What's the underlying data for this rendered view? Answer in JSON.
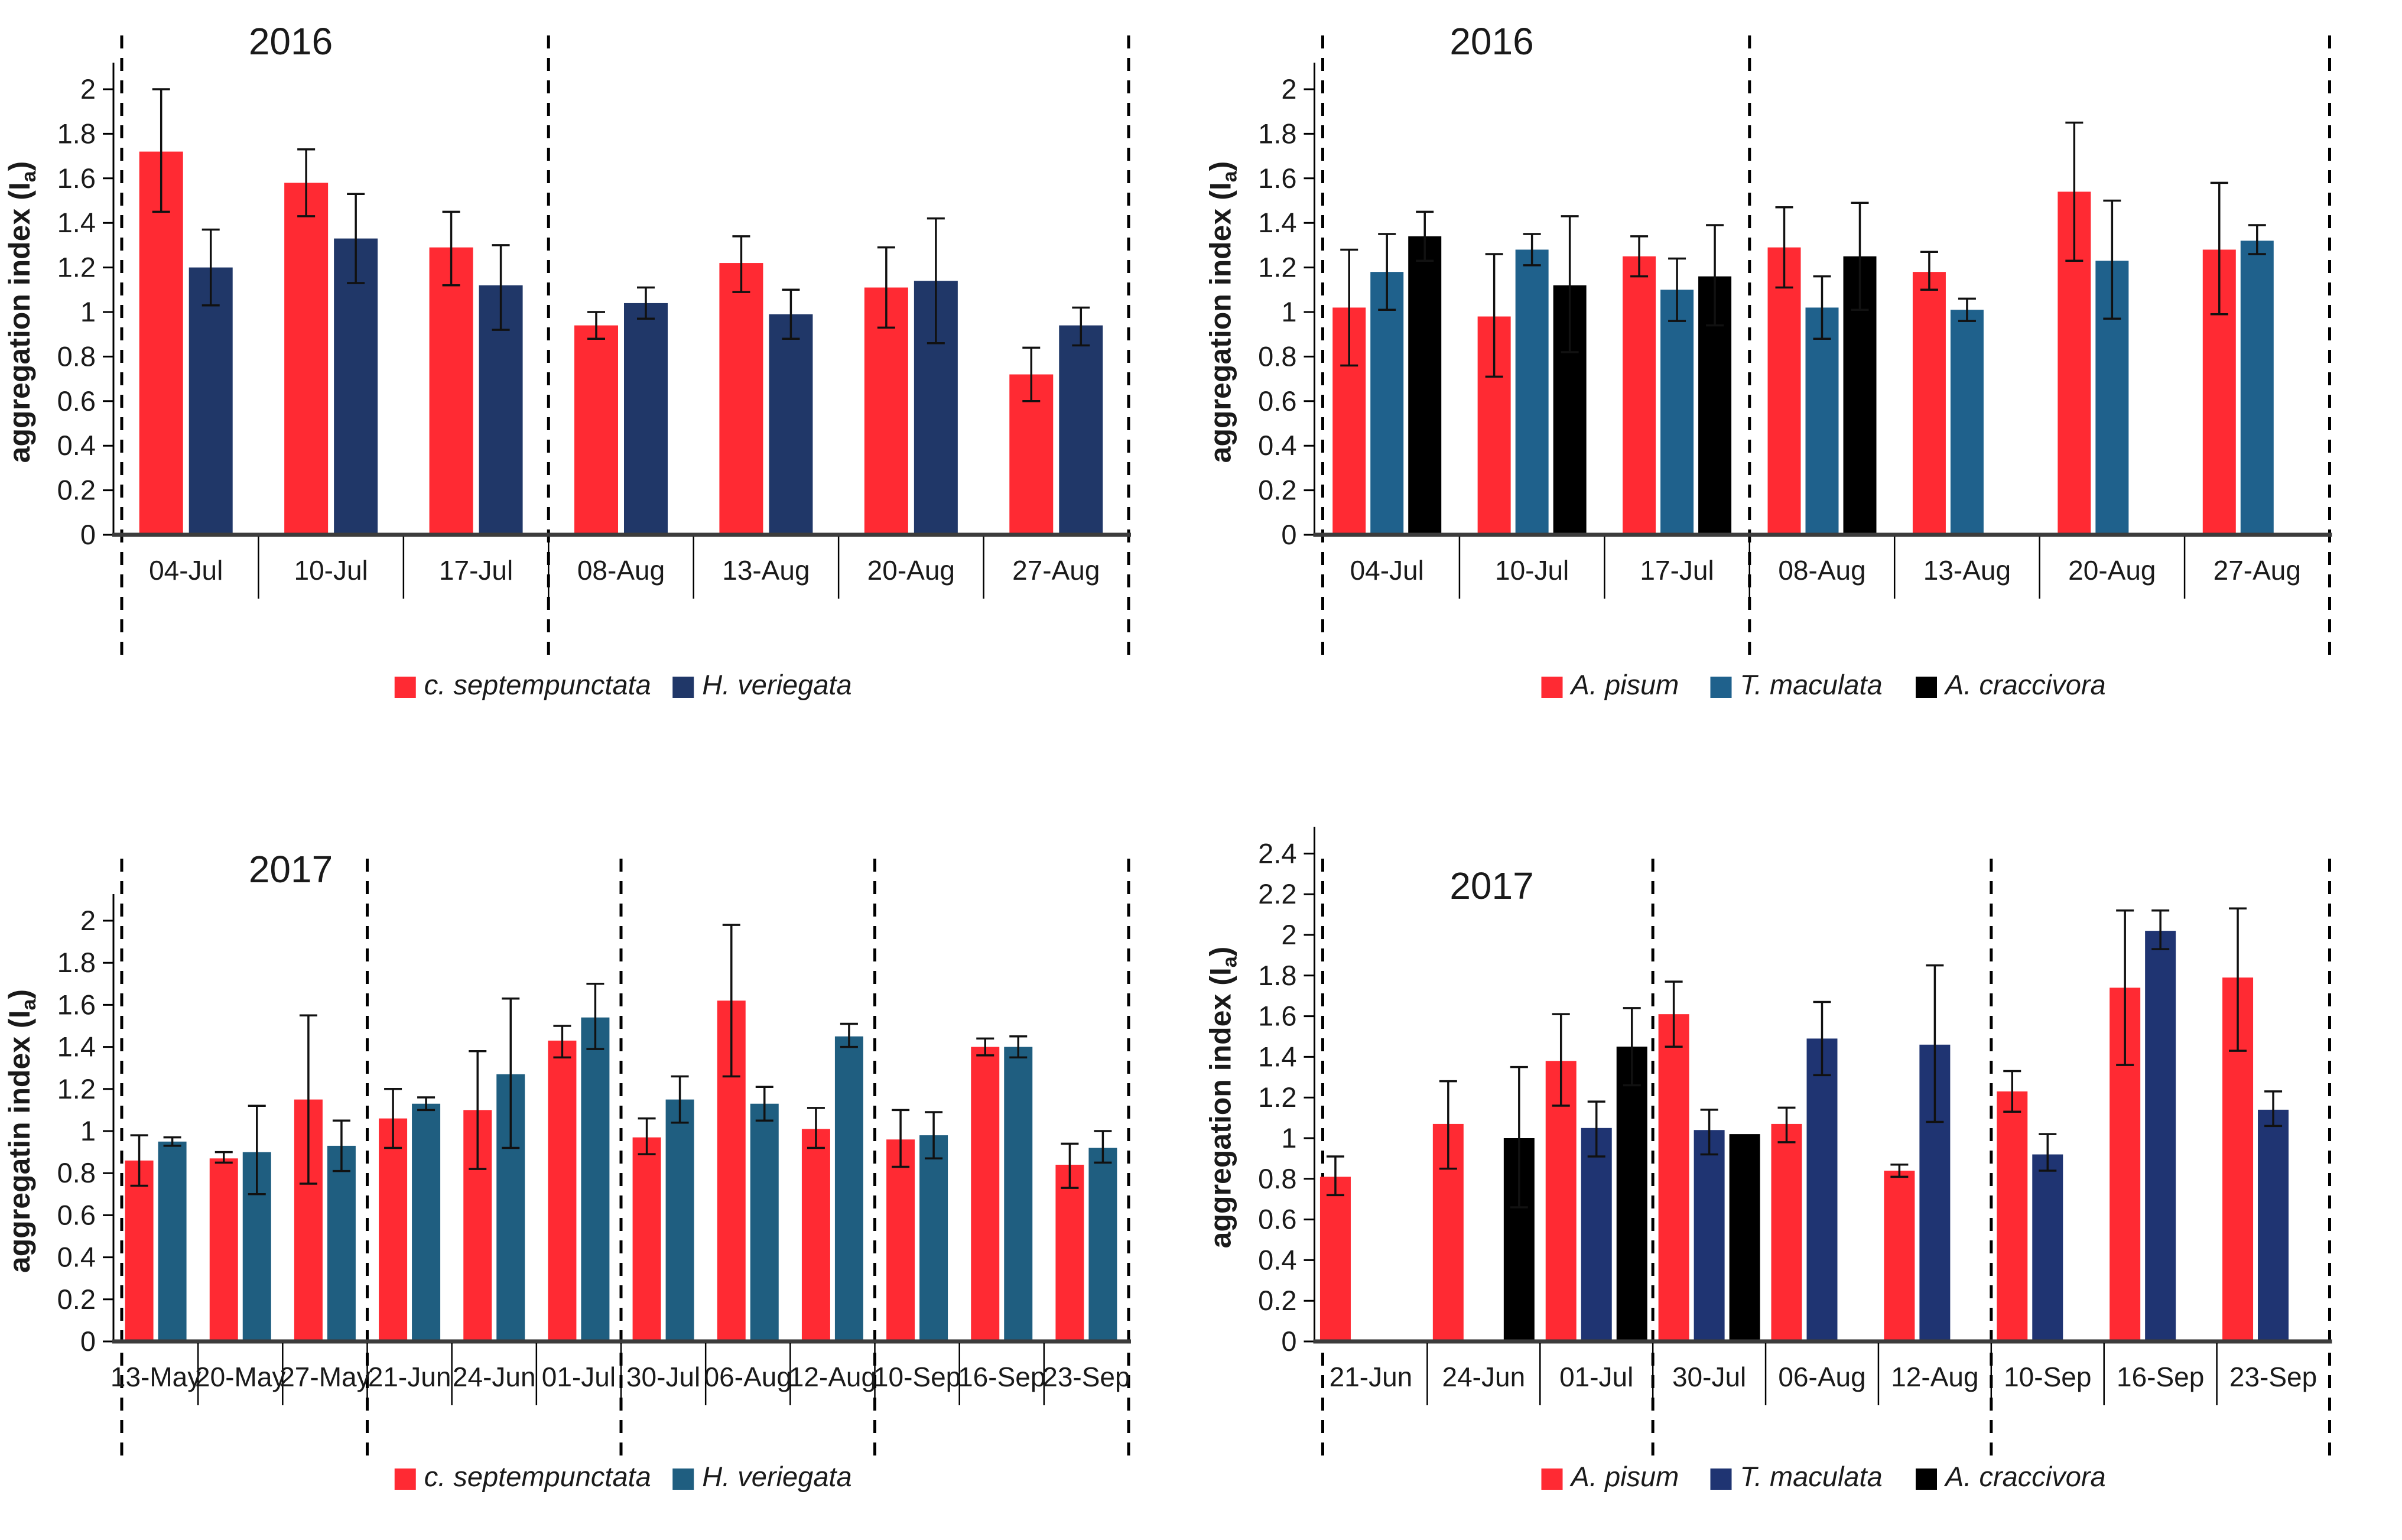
{
  "chart_data": [
    {
      "type": "bar",
      "title": "2016",
      "ylabel": {
        "text": "aggregation index (I",
        "sub": "a",
        "suffix": ")"
      },
      "ylim": [
        0,
        2
      ],
      "ytick_step": 0.2,
      "yticks": [
        "0",
        "0.2",
        "0.4",
        "0.6",
        "0.8",
        "1",
        "1.2",
        "1.4",
        "1.6",
        "1.8",
        "2"
      ],
      "grid": false,
      "legend_position": "bottom",
      "categories": [
        "04-Jul",
        "10-Jul",
        "17-Jul",
        "08-Aug",
        "13-Aug",
        "20-Aug",
        "27-Aug"
      ],
      "dashed_separators_after_index": [
        -1,
        2,
        6
      ],
      "series": [
        {
          "name": "c. septempunctata",
          "color": "#FF2A33",
          "values": [
            1.72,
            1.58,
            1.29,
            0.94,
            1.22,
            1.11,
            0.72
          ],
          "err_lo": [
            1.45,
            1.43,
            1.12,
            0.88,
            1.09,
            0.93,
            0.6
          ],
          "err_hi": [
            2.0,
            1.73,
            1.45,
            1.0,
            1.34,
            1.29,
            0.84
          ]
        },
        {
          "name": "H. veriegata",
          "color": "#203768",
          "values": [
            1.2,
            1.33,
            1.12,
            1.04,
            0.99,
            1.14,
            0.94
          ],
          "err_lo": [
            1.03,
            1.13,
            0.92,
            0.97,
            0.88,
            0.86,
            0.85
          ],
          "err_hi": [
            1.37,
            1.53,
            1.3,
            1.11,
            1.1,
            1.42,
            1.02
          ]
        }
      ]
    },
    {
      "type": "bar",
      "title": "2016",
      "ylabel": {
        "text": "aggregation index (I",
        "sub": "a",
        "suffix": ")"
      },
      "ylim": [
        0,
        2
      ],
      "ytick_step": 0.2,
      "yticks": [
        "0",
        "0.2",
        "0.4",
        "0.6",
        "0.8",
        "1",
        "1.2",
        "1.4",
        "1.6",
        "1.8",
        "2"
      ],
      "grid": false,
      "legend_position": "bottom",
      "categories": [
        "04-Jul",
        "10-Jul",
        "17-Jul",
        "08-Aug",
        "13-Aug",
        "20-Aug",
        "27-Aug"
      ],
      "dashed_separators_after_index": [
        -1,
        2,
        6
      ],
      "series": [
        {
          "name": "A. pisum",
          "color": "#FF2A33",
          "values": [
            1.02,
            0.98,
            1.25,
            1.29,
            1.18,
            1.54,
            1.28
          ],
          "err_lo": [
            0.76,
            0.71,
            1.16,
            1.11,
            1.1,
            1.23,
            0.99
          ],
          "err_hi": [
            1.28,
            1.26,
            1.34,
            1.47,
            1.27,
            1.85,
            1.58
          ]
        },
        {
          "name": "T. maculata",
          "color": "#1F618C",
          "values": [
            1.18,
            1.28,
            1.1,
            1.02,
            1.01,
            1.23,
            1.32
          ],
          "err_lo": [
            1.01,
            1.21,
            0.96,
            0.88,
            0.96,
            0.97,
            1.26
          ],
          "err_hi": [
            1.35,
            1.35,
            1.24,
            1.16,
            1.06,
            1.5,
            1.39
          ]
        },
        {
          "name": "A. craccivora",
          "color": "#000000",
          "values": [
            1.34,
            1.12,
            1.16,
            1.25,
            null,
            null,
            null
          ],
          "err_lo": [
            1.23,
            0.82,
            0.94,
            1.01,
            null,
            null,
            null
          ],
          "err_hi": [
            1.45,
            1.43,
            1.39,
            1.49,
            null,
            null,
            null
          ]
        }
      ]
    },
    {
      "type": "bar",
      "title": "2017",
      "ylabel": {
        "text": "aggregatin index (I",
        "sub": "a",
        "suffix": ")"
      },
      "ylim": [
        0,
        2
      ],
      "ytick_step": 0.2,
      "yticks": [
        "0",
        "0.2",
        "0.4",
        "0.6",
        "0.8",
        "1",
        "1.2",
        "1.4",
        "1.6",
        "1.8",
        "2"
      ],
      "grid": false,
      "legend_position": "bottom",
      "categories": [
        "13-May",
        "20-May",
        "27-May",
        "21-Jun",
        "24-Jun",
        "01-Jul",
        "30-Jul",
        "06-Aug",
        "12-Aug",
        "10-Sep",
        "16-Sep",
        "23-Sep"
      ],
      "dashed_separators_after_index": [
        -1,
        2,
        5,
        8,
        11
      ],
      "series": [
        {
          "name": "c. septempunctata",
          "color": "#FF2A33",
          "values": [
            0.86,
            0.87,
            1.15,
            1.06,
            1.1,
            1.43,
            0.97,
            1.62,
            1.01,
            0.96,
            1.4,
            0.84
          ],
          "err_lo": [
            0.74,
            0.85,
            0.75,
            0.92,
            0.82,
            1.35,
            0.89,
            1.26,
            0.92,
            0.83,
            1.36,
            0.73
          ],
          "err_hi": [
            0.98,
            0.9,
            1.55,
            1.2,
            1.38,
            1.5,
            1.06,
            1.98,
            1.11,
            1.1,
            1.44,
            0.94
          ]
        },
        {
          "name": "H. veriegata",
          "color": "#1F5E80",
          "values": [
            0.95,
            0.9,
            0.93,
            1.13,
            1.27,
            1.54,
            1.15,
            1.13,
            1.45,
            0.98,
            1.4,
            0.92
          ],
          "err_lo": [
            0.93,
            0.7,
            0.81,
            1.1,
            0.92,
            1.39,
            1.04,
            1.05,
            1.4,
            0.87,
            1.35,
            0.85
          ],
          "err_hi": [
            0.97,
            1.12,
            1.05,
            1.16,
            1.63,
            1.7,
            1.26,
            1.21,
            1.51,
            1.09,
            1.45,
            1.0
          ]
        }
      ]
    },
    {
      "type": "bar",
      "title": "2017",
      "ylabel": {
        "text": "aggregation index (I",
        "sub": "a",
        "suffix": ")"
      },
      "ylim": [
        0,
        2.4
      ],
      "ytick_step": 0.2,
      "yticks": [
        "0",
        "0.2",
        "0.4",
        "0.6",
        "0.8",
        "1",
        "1.2",
        "1.4",
        "1.6",
        "1.8",
        "2",
        "2.2",
        "2.4"
      ],
      "grid": false,
      "legend_position": "bottom",
      "categories": [
        "21-Jun",
        "24-Jun",
        "01-Jul",
        "30-Jul",
        "06-Aug",
        "12-Aug",
        "10-Sep",
        "16-Sep",
        "23-Sep"
      ],
      "dashed_separators_after_index": [
        -1,
        2,
        5,
        8
      ],
      "series": [
        {
          "name": "A. pisum",
          "color": "#FF2A33",
          "values": [
            0.81,
            1.07,
            1.38,
            1.61,
            1.07,
            0.84,
            1.23,
            1.74,
            1.79
          ],
          "err_lo": [
            0.72,
            0.85,
            1.16,
            1.45,
            0.98,
            0.81,
            1.13,
            1.36,
            1.43
          ],
          "err_hi": [
            0.91,
            1.28,
            1.61,
            1.77,
            1.15,
            0.87,
            1.33,
            2.12,
            2.13
          ]
        },
        {
          "name": "T. maculata",
          "color": "#1F3472",
          "values": [
            null,
            null,
            1.05,
            1.04,
            1.49,
            1.46,
            0.92,
            2.02,
            1.14
          ],
          "err_lo": [
            null,
            null,
            0.91,
            0.92,
            1.31,
            1.08,
            0.84,
            1.93,
            1.06
          ],
          "err_hi": [
            null,
            null,
            1.18,
            1.14,
            1.67,
            1.85,
            1.02,
            2.12,
            1.23
          ]
        },
        {
          "name": "A. craccivora",
          "color": "#000000",
          "values": [
            null,
            1.0,
            1.45,
            1.02,
            null,
            null,
            null,
            null,
            null
          ],
          "err_lo": [
            null,
            0.66,
            1.26,
            null,
            null,
            null,
            null,
            null,
            null
          ],
          "err_hi": [
            null,
            1.35,
            1.64,
            null,
            null,
            null,
            null,
            null,
            null
          ]
        }
      ]
    }
  ]
}
